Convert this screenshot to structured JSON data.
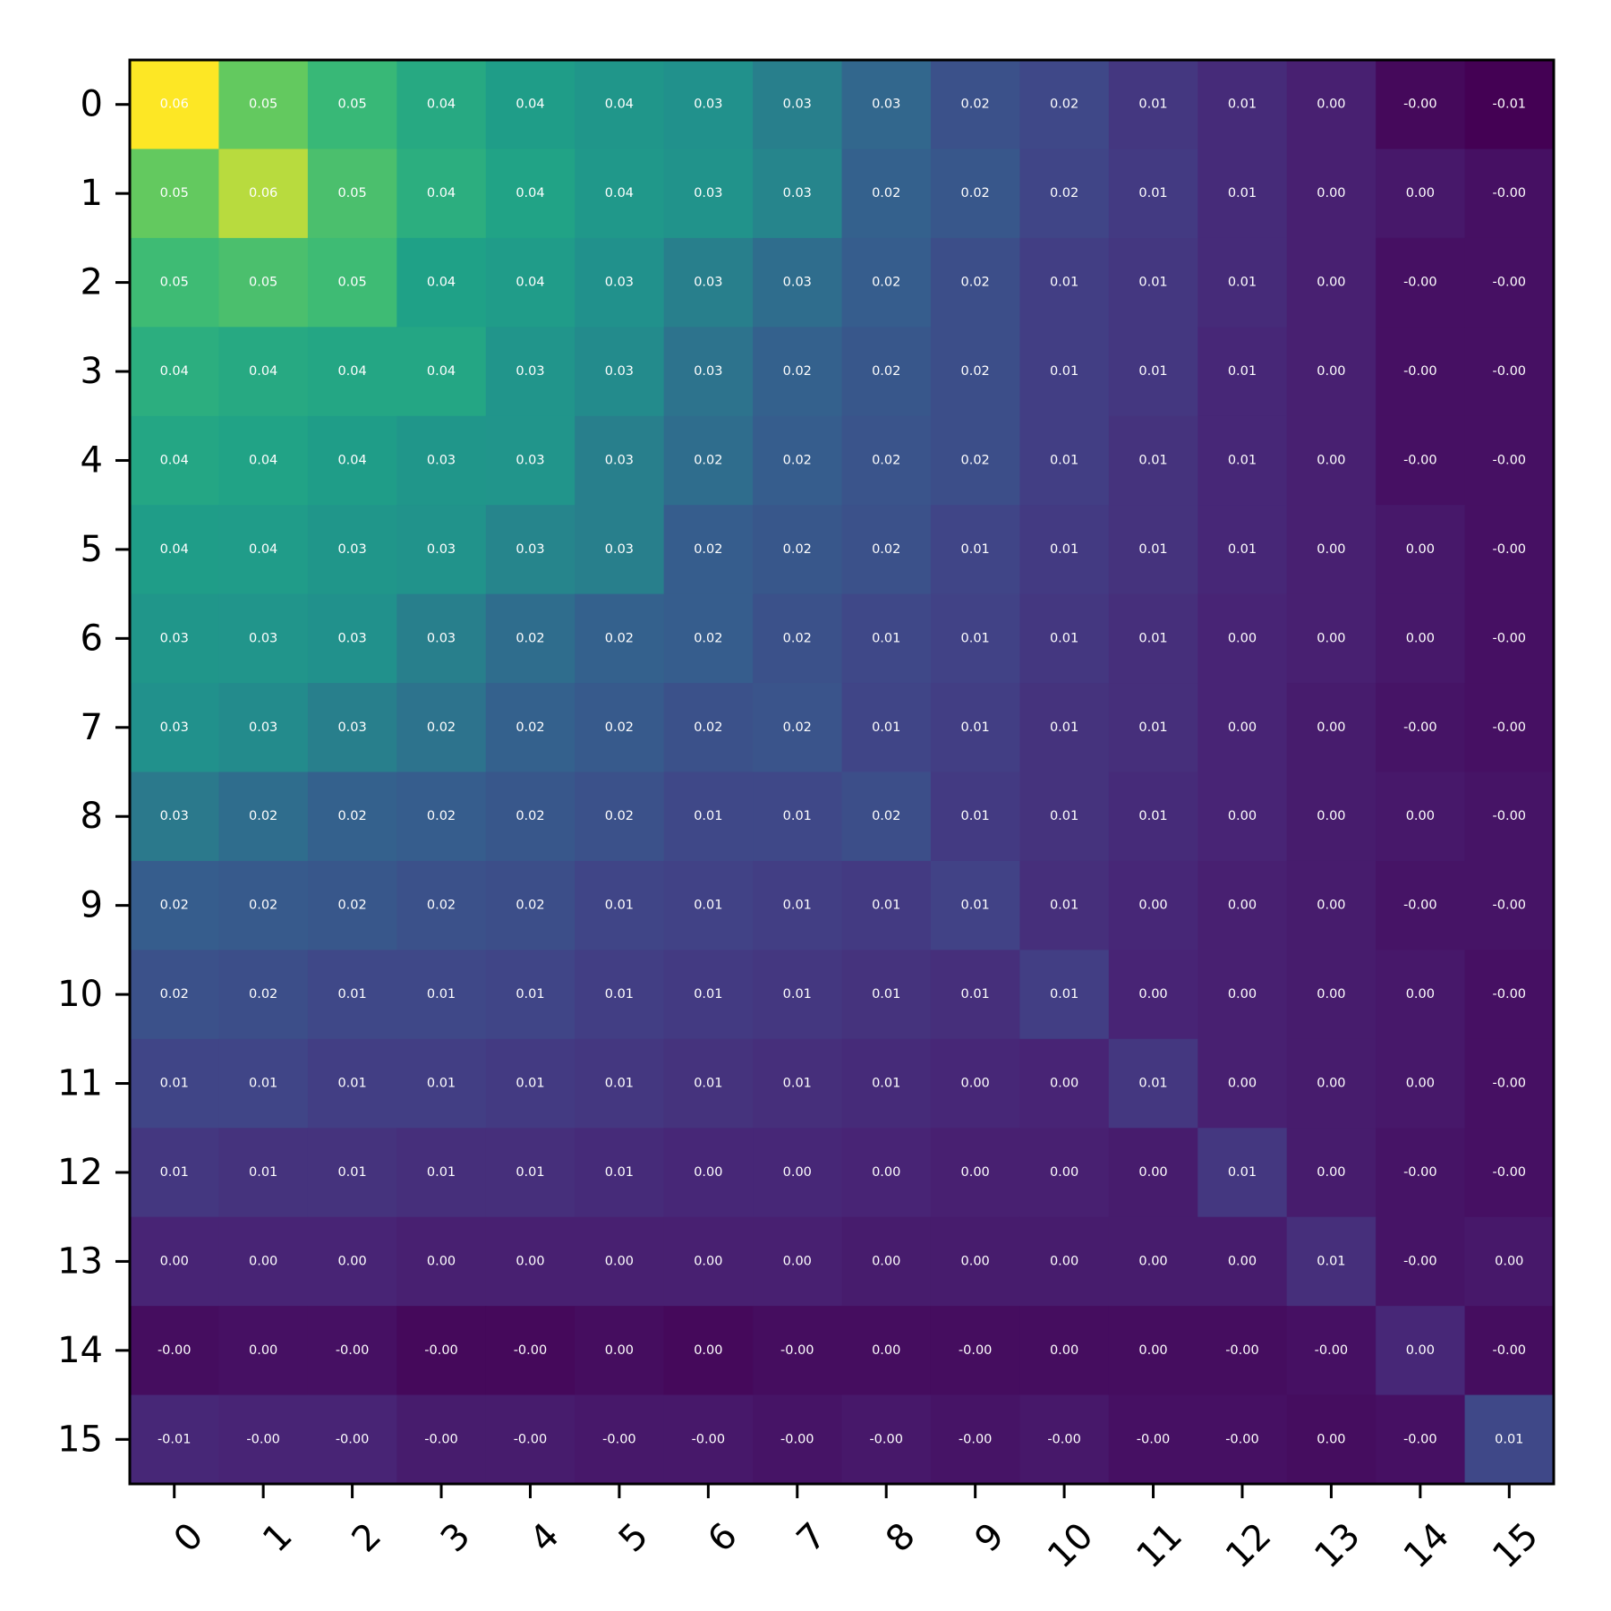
{
  "chart_data": {
    "type": "heatmap",
    "title": "",
    "xlabel": "",
    "ylabel": "",
    "x_tick_labels": [
      "0",
      "1",
      "2",
      "3",
      "4",
      "5",
      "6",
      "7",
      "8",
      "9",
      "10",
      "11",
      "12",
      "13",
      "14",
      "15"
    ],
    "y_tick_labels": [
      "0",
      "1",
      "2",
      "3",
      "4",
      "5",
      "6",
      "7",
      "8",
      "9",
      "10",
      "11",
      "12",
      "13",
      "14",
      "15"
    ],
    "colormap": "viridis",
    "vmin": -0.01,
    "vmax": 0.06,
    "annotation_format": "2 decimals",
    "grid": false,
    "values": [
      [
        0.064,
        0.054,
        0.047,
        0.041,
        0.036,
        0.032,
        0.029,
        0.026,
        0.022,
        0.016,
        0.013,
        0.008,
        0.005,
        0.002,
        -0.004,
        -0.006
      ],
      [
        0.054,
        0.06,
        0.05,
        0.043,
        0.039,
        0.033,
        0.03,
        0.027,
        0.021,
        0.018,
        0.012,
        0.009,
        0.005,
        0.002,
        0.0,
        -0.002
      ],
      [
        0.048,
        0.05,
        0.048,
        0.038,
        0.035,
        0.029,
        0.026,
        0.023,
        0.02,
        0.015,
        0.01,
        0.008,
        0.005,
        0.002,
        -0.002,
        -0.002
      ],
      [
        0.043,
        0.041,
        0.04,
        0.04,
        0.031,
        0.028,
        0.024,
        0.021,
        0.018,
        0.015,
        0.01,
        0.008,
        0.004,
        0.002,
        -0.002,
        -0.002
      ],
      [
        0.04,
        0.039,
        0.036,
        0.032,
        0.031,
        0.026,
        0.023,
        0.02,
        0.017,
        0.015,
        0.01,
        0.007,
        0.004,
        0.002,
        -0.002,
        -0.002
      ],
      [
        0.036,
        0.035,
        0.032,
        0.03,
        0.027,
        0.026,
        0.02,
        0.018,
        0.016,
        0.012,
        0.009,
        0.007,
        0.004,
        0.002,
        0.0,
        -0.002
      ],
      [
        0.032,
        0.031,
        0.029,
        0.026,
        0.023,
        0.021,
        0.02,
        0.016,
        0.013,
        0.011,
        0.008,
        0.006,
        0.003,
        0.002,
        0.0,
        -0.002
      ],
      [
        0.029,
        0.028,
        0.026,
        0.024,
        0.021,
        0.019,
        0.016,
        0.017,
        0.012,
        0.01,
        0.007,
        0.006,
        0.003,
        0.001,
        -0.001,
        -0.002
      ],
      [
        0.025,
        0.023,
        0.021,
        0.02,
        0.018,
        0.016,
        0.013,
        0.013,
        0.015,
        0.009,
        0.007,
        0.005,
        0.003,
        0.001,
        0.0,
        -0.001
      ],
      [
        0.02,
        0.019,
        0.018,
        0.016,
        0.015,
        0.012,
        0.011,
        0.01,
        0.009,
        0.011,
        0.006,
        0.004,
        0.002,
        0.001,
        -0.001,
        -0.001
      ],
      [
        0.016,
        0.015,
        0.013,
        0.013,
        0.012,
        0.01,
        0.009,
        0.008,
        0.007,
        0.006,
        0.01,
        0.003,
        0.002,
        0.001,
        0.0,
        -0.002
      ],
      [
        0.012,
        0.012,
        0.01,
        0.01,
        0.009,
        0.008,
        0.007,
        0.006,
        0.005,
        0.004,
        0.003,
        0.008,
        0.002,
        0.001,
        0.0,
        -0.002
      ],
      [
        0.008,
        0.007,
        0.007,
        0.006,
        0.006,
        0.005,
        0.004,
        0.004,
        0.003,
        0.002,
        0.002,
        0.001,
        0.008,
        0.001,
        -0.001,
        -0.002
      ],
      [
        0.003,
        0.003,
        0.003,
        0.002,
        0.002,
        0.002,
        0.002,
        0.002,
        0.001,
        0.001,
        0.001,
        0.001,
        0.001,
        0.006,
        -0.001,
        0.0
      ],
      [
        -0.003,
        -0.002,
        -0.002,
        -0.004,
        -0.004,
        -0.003,
        -0.004,
        -0.003,
        -0.003,
        -0.003,
        -0.003,
        -0.003,
        -0.003,
        -0.002,
        0.004,
        -0.003
      ],
      [
        0.004,
        0.003,
        0.003,
        0.001,
        0.001,
        0.0,
        0.0,
        -0.001,
        0.0,
        -0.001,
        0.0,
        -0.002,
        -0.002,
        -0.003,
        -0.002,
        0.013
      ]
    ],
    "labels": [
      [
        "0.06",
        "0.05",
        "0.05",
        "0.04",
        "0.04",
        "0.04",
        "0.03",
        "0.03",
        "0.03",
        "0.02",
        "0.02",
        "0.01",
        "0.01",
        "0.00",
        "-0.00",
        "-0.01"
      ],
      [
        "0.05",
        "0.06",
        "0.05",
        "0.04",
        "0.04",
        "0.04",
        "0.03",
        "0.03",
        "0.02",
        "0.02",
        "0.02",
        "0.01",
        "0.01",
        "0.00",
        "0.00",
        "-0.00"
      ],
      [
        "0.05",
        "0.05",
        "0.05",
        "0.04",
        "0.04",
        "0.03",
        "0.03",
        "0.03",
        "0.02",
        "0.02",
        "0.01",
        "0.01",
        "0.01",
        "0.00",
        "-0.00",
        "-0.00"
      ],
      [
        "0.04",
        "0.04",
        "0.04",
        "0.04",
        "0.03",
        "0.03",
        "0.03",
        "0.02",
        "0.02",
        "0.02",
        "0.01",
        "0.01",
        "0.01",
        "0.00",
        "-0.00",
        "-0.00"
      ],
      [
        "0.04",
        "0.04",
        "0.04",
        "0.03",
        "0.03",
        "0.03",
        "0.02",
        "0.02",
        "0.02",
        "0.02",
        "0.01",
        "0.01",
        "0.01",
        "0.00",
        "-0.00",
        "-0.00"
      ],
      [
        "0.04",
        "0.04",
        "0.03",
        "0.03",
        "0.03",
        "0.03",
        "0.02",
        "0.02",
        "0.02",
        "0.01",
        "0.01",
        "0.01",
        "0.01",
        "0.00",
        "0.00",
        "-0.00"
      ],
      [
        "0.03",
        "0.03",
        "0.03",
        "0.03",
        "0.02",
        "0.02",
        "0.02",
        "0.02",
        "0.01",
        "0.01",
        "0.01",
        "0.01",
        "0.00",
        "0.00",
        "0.00",
        "-0.00"
      ],
      [
        "0.03",
        "0.03",
        "0.03",
        "0.02",
        "0.02",
        "0.02",
        "0.02",
        "0.02",
        "0.01",
        "0.01",
        "0.01",
        "0.01",
        "0.00",
        "0.00",
        "-0.00",
        "-0.00"
      ],
      [
        "0.03",
        "0.02",
        "0.02",
        "0.02",
        "0.02",
        "0.02",
        "0.01",
        "0.01",
        "0.02",
        "0.01",
        "0.01",
        "0.01",
        "0.00",
        "0.00",
        "0.00",
        "-0.00"
      ],
      [
        "0.02",
        "0.02",
        "0.02",
        "0.02",
        "0.02",
        "0.01",
        "0.01",
        "0.01",
        "0.01",
        "0.01",
        "0.01",
        "0.00",
        "0.00",
        "0.00",
        "-0.00",
        "-0.00"
      ],
      [
        "0.02",
        "0.02",
        "0.01",
        "0.01",
        "0.01",
        "0.01",
        "0.01",
        "0.01",
        "0.01",
        "0.01",
        "0.01",
        "0.00",
        "0.00",
        "0.00",
        "0.00",
        "-0.00"
      ],
      [
        "0.01",
        "0.01",
        "0.01",
        "0.01",
        "0.01",
        "0.01",
        "0.01",
        "0.01",
        "0.01",
        "0.00",
        "0.00",
        "0.01",
        "0.00",
        "0.00",
        "0.00",
        "-0.00"
      ],
      [
        "0.01",
        "0.01",
        "0.01",
        "0.01",
        "0.01",
        "0.01",
        "0.00",
        "0.00",
        "0.00",
        "0.00",
        "0.00",
        "0.00",
        "0.01",
        "0.00",
        "-0.00",
        "-0.00"
      ],
      [
        "0.00",
        "0.00",
        "0.00",
        "0.00",
        "0.00",
        "0.00",
        "0.00",
        "0.00",
        "0.00",
        "0.00",
        "0.00",
        "0.00",
        "0.00",
        "0.01",
        "-0.00",
        "0.00"
      ],
      [
        "-0.00",
        "0.00",
        "-0.00",
        "-0.00",
        "-0.00",
        "0.00",
        "0.00",
        "-0.00",
        "0.00",
        "-0.00",
        "0.00",
        "0.00",
        "-0.00",
        "-0.00",
        "0.00",
        "-0.00"
      ],
      [
        "-0.01",
        "-0.00",
        "-0.00",
        "-0.00",
        "-0.00",
        "-0.00",
        "-0.00",
        "-0.00",
        "-0.00",
        "-0.00",
        "-0.00",
        "-0.00",
        "-0.00",
        "0.00",
        "-0.00",
        "0.01"
      ]
    ]
  }
}
